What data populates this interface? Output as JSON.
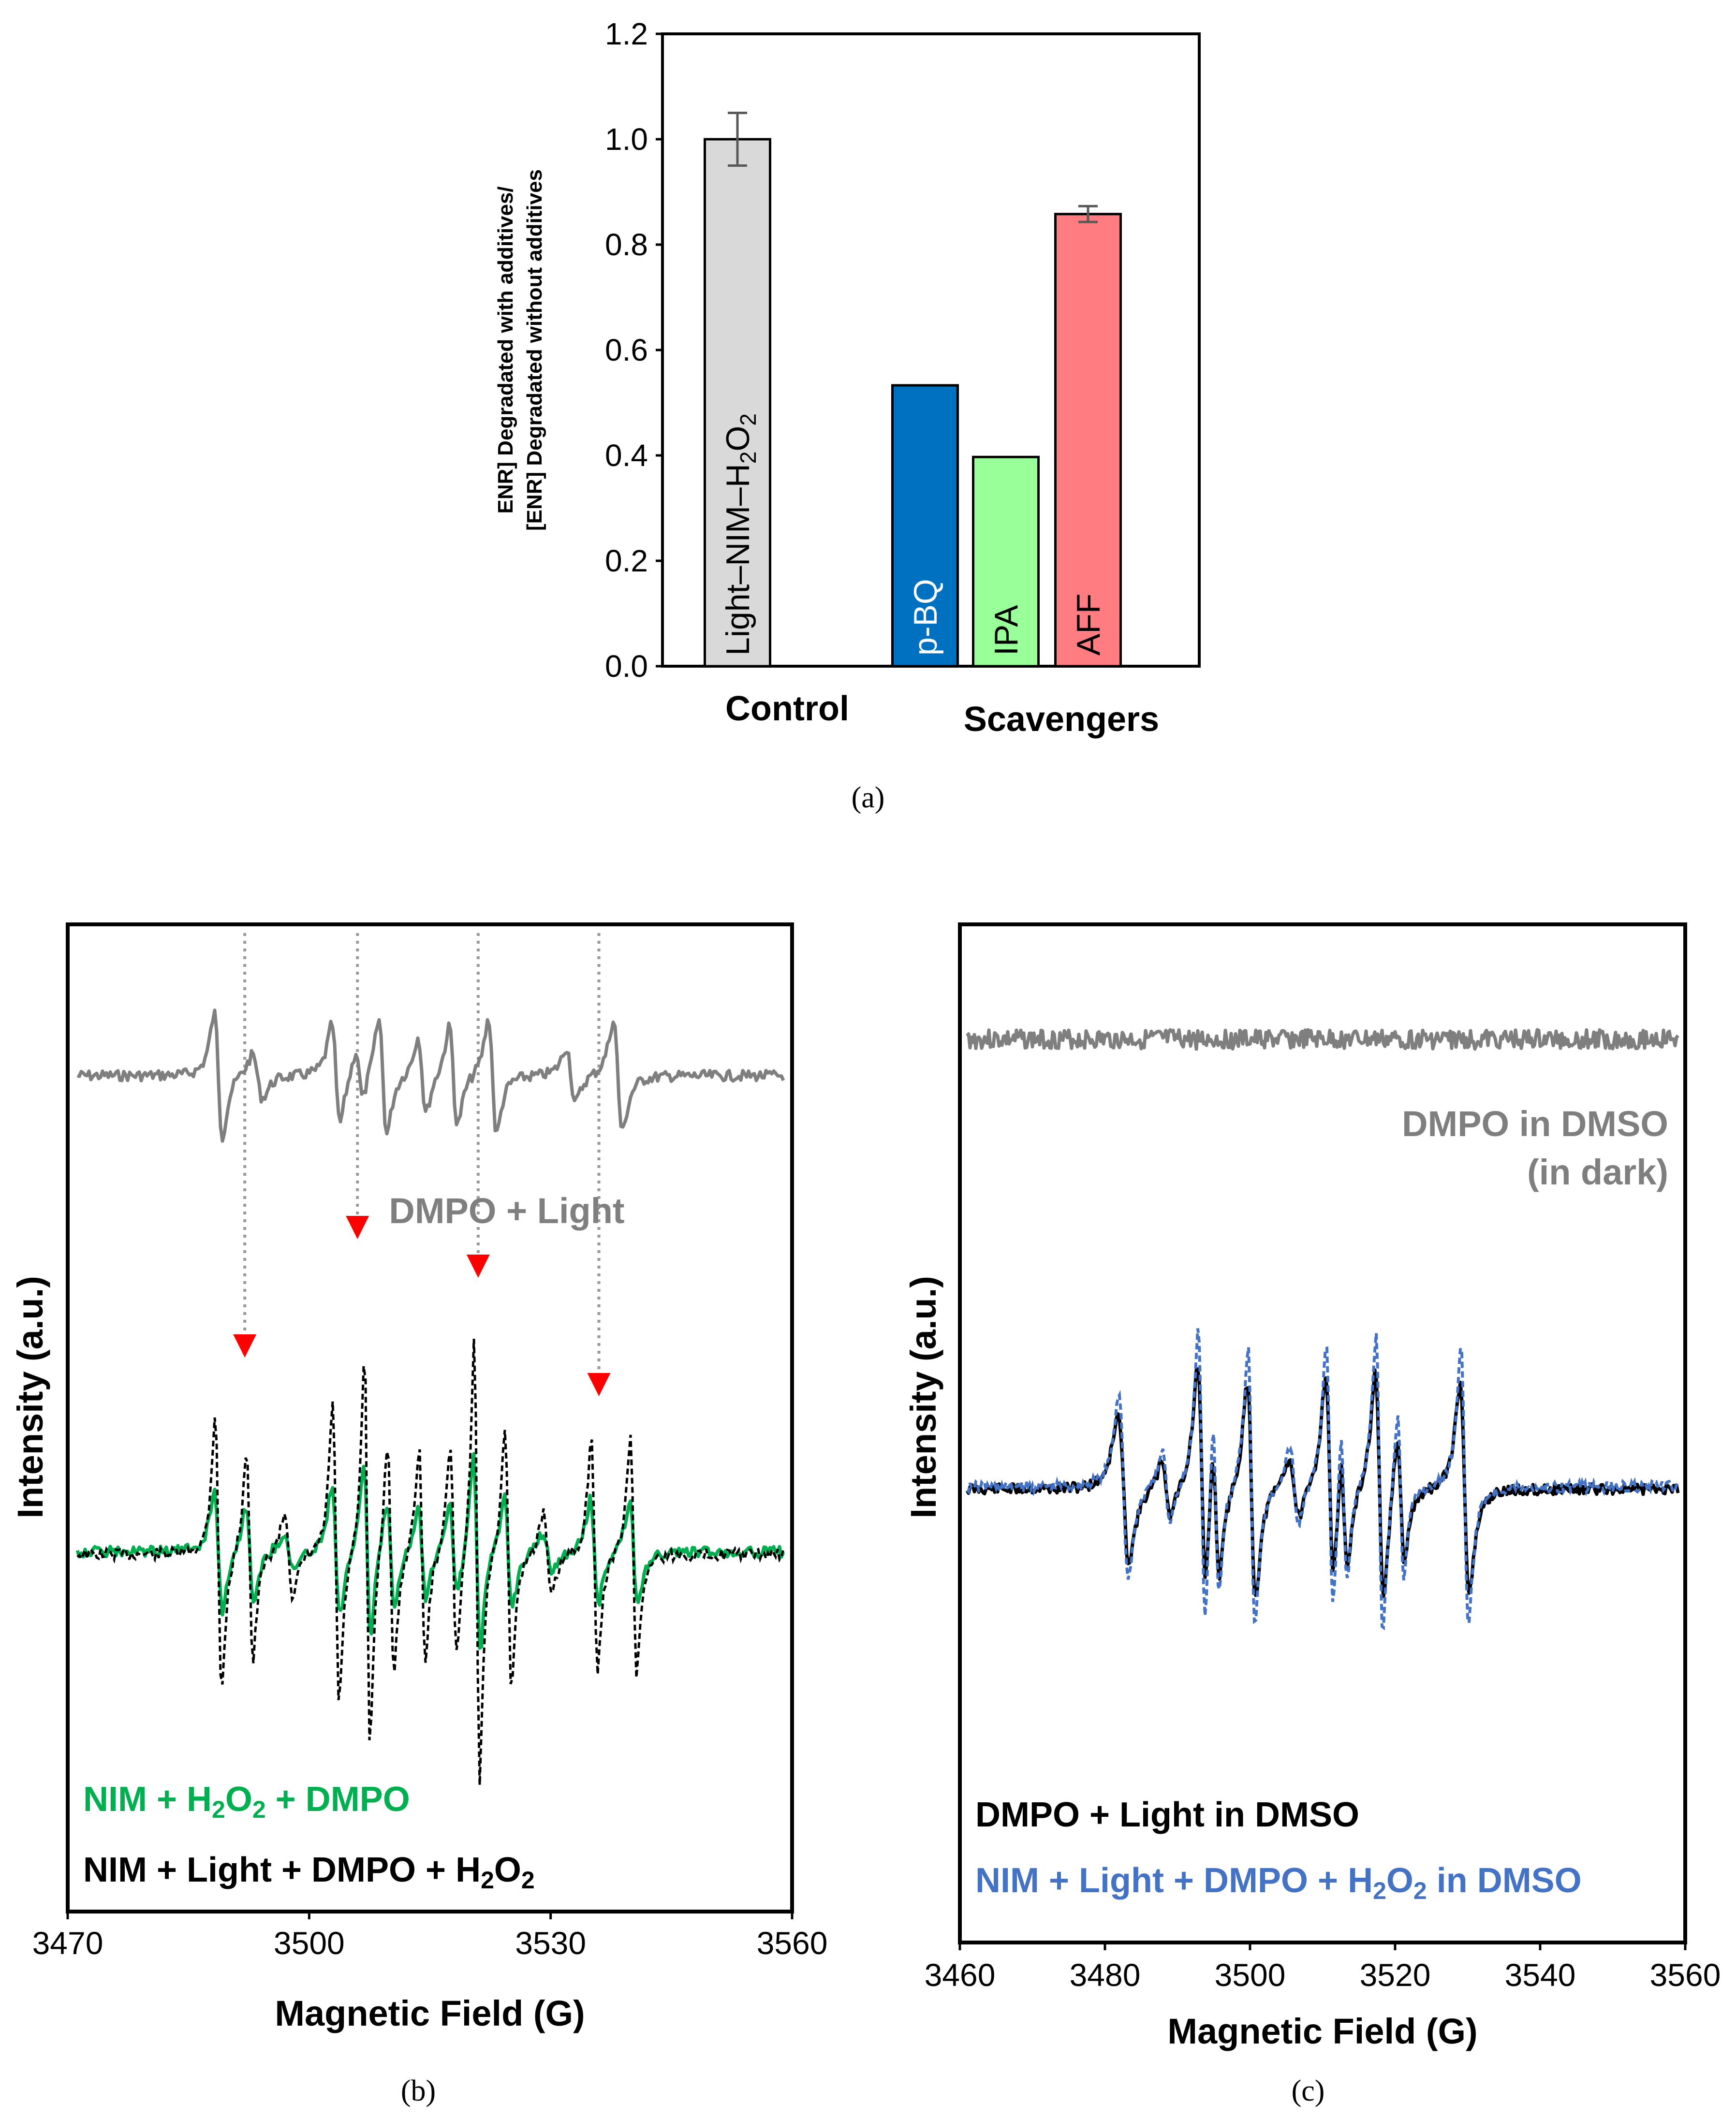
{
  "chart_data": [
    {
      "panel": "a",
      "type": "bar",
      "caption": "(a)",
      "ylabel_line1": "ENR] Degradated with additives/",
      "ylabel_line2": "[ENR] Degradated without additives",
      "ylim": [
        0.0,
        1.2
      ],
      "yticks": [
        "0.0",
        "0.2",
        "0.4",
        "0.6",
        "0.8",
        "1.0",
        "1.2"
      ],
      "groups": [
        "Control",
        "Scavengers"
      ],
      "bars": [
        {
          "label": "Light–NIM–H",
          "sub1": "2",
          "mid": "O",
          "sub2": "2",
          "value": 1.0,
          "error": 0.05,
          "color": "#d9d9d9",
          "group": "Control"
        },
        {
          "label": "p-BQ",
          "value": 0.533,
          "error": 0.0,
          "color": "#0070c0",
          "group": "Scavengers"
        },
        {
          "label": "IPA",
          "value": 0.397,
          "error": 0.0,
          "color": "#99ff99",
          "group": "Scavengers"
        },
        {
          "label": "AFF",
          "value": 0.858,
          "error": 0.015,
          "color": "#ff7c80",
          "group": "Scavengers"
        }
      ]
    },
    {
      "panel": "b",
      "type": "line",
      "caption": "(b)",
      "xlabel": "Magnetic Field (G)",
      "ylabel": "Intensity (a.u.)",
      "xlim": [
        3470,
        3560
      ],
      "xticks": [
        "3470",
        "3500",
        "3530",
        "3560"
      ],
      "series": [
        {
          "name": "DMPO + Light",
          "color": "#7f7f7f",
          "style": "solid"
        },
        {
          "name_parts": [
            "NIM + H",
            "2",
            "O",
            "2",
            " + DMPO"
          ],
          "color": "#00b050",
          "style": "solid"
        },
        {
          "name_parts": [
            "NIM + Light + DMPO + H",
            "2",
            "O",
            "2"
          ],
          "color": "#000000",
          "style": "dashed"
        }
      ],
      "annotation": "red arrows marking peak positions at approx. 3492, 3506, 3521, 3536 G",
      "arrow_positions": [
        3492,
        3506,
        3521,
        3536
      ]
    },
    {
      "panel": "c",
      "type": "line",
      "caption": "(c)",
      "xlabel": "Magnetic Field (G)",
      "ylabel": "Intensity (a.u.)",
      "xlim": [
        3460,
        3560
      ],
      "xticks": [
        "3460",
        "3480",
        "3500",
        "3520",
        "3540",
        "3560"
      ],
      "series": [
        {
          "name_line1": "DMPO in DMSO",
          "name_line2": "(in dark)",
          "color": "#7f7f7f",
          "style": "solid"
        },
        {
          "name": "DMPO + Light in DMSO",
          "color": "#000000",
          "style": "solid"
        },
        {
          "name_parts": [
            "NIM + Light + DMPO + H",
            "2",
            "O",
            "2",
            " in DMSO"
          ],
          "color": "#4472c4",
          "style": "dashed"
        }
      ]
    }
  ]
}
